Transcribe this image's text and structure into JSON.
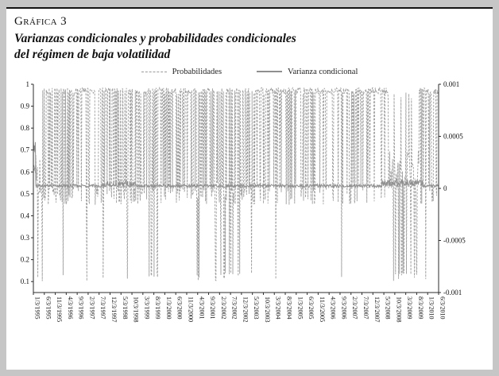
{
  "header": {
    "kicker": "Gráfica 3",
    "title_line1": "Varianzas condicionales y probabilidades condicionales",
    "title_line2": "del régimen de baja volatilidad"
  },
  "chart_data": {
    "type": "line",
    "title": "Varianzas condicionales y probabilidades condicionales del régimen de baja volatilidad",
    "n_points": 820,
    "seed": 42,
    "grid": false,
    "legend_position": "top-center",
    "x_axis": {
      "label_rotation_deg": 90,
      "tick_labels": [
        "1/3/1995",
        "6/3/1995",
        "11/3/1995",
        "4/3/1996",
        "9/3/1996",
        "2/3/1997",
        "7/3/1997",
        "12/3/1997",
        "5/3/1998",
        "10/3/1998",
        "3/3/1999",
        "8/3/1999",
        "1/3/2000",
        "6/3/2000",
        "11/3/2000",
        "4/3/2001",
        "9/3/2001",
        "2/3/2002",
        "7/3/2002",
        "12/3/2002",
        "5/3/2003",
        "10/3/2003",
        "3/3/2004",
        "8/3/2004",
        "1/3/2005",
        "6/3/2005",
        "11/3/2005",
        "4/3/2006",
        "9/3/2006",
        "2/3/2007",
        "7/3/2007",
        "12/3/2007",
        "5/3/2008",
        "10/3/2008",
        "3/3/2009",
        "8/3/2009",
        "1/3/2010",
        "6/3/2010"
      ]
    },
    "left_axis": {
      "tick_labels": [
        "0.1",
        "0.2",
        "0.3",
        "0.4",
        "0.5",
        "0.6",
        "0.7",
        "0.8",
        "0.9",
        "1"
      ],
      "tick_values": [
        0.1,
        0.2,
        0.3,
        0.4,
        0.5,
        0.6,
        0.7,
        0.8,
        0.9,
        1
      ],
      "range": [
        0.05,
        1.0
      ]
    },
    "right_axis": {
      "tick_labels": [
        "0.001",
        "0.0005",
        "0",
        "-0.0005",
        "-0.001"
      ],
      "tick_values": [
        0.001,
        0.0005,
        0,
        -0.0005,
        -0.001
      ],
      "range": [
        -0.001,
        0.001
      ]
    },
    "series": [
      {
        "name": "Probabilidades",
        "axis": "left",
        "style": "dashed",
        "color": "#9b9b9b",
        "description": "Probability of low-volatility regime: mostly near 0.97 with frequent spikes down to ~0.5 and occasional drops to ~0.1; dense low clusters at start of 1995 and during late 2008 - 2009.",
        "pattern_segments": [
          {
            "t0": 0.0,
            "t1": 0.018,
            "base": 0.62,
            "dip": 0.8,
            "dipLow": 0.5,
            "dipHigh": 0.7,
            "deep": 0.1,
            "deepLow": 0.1
          },
          {
            "t0": 0.018,
            "t1": 0.06,
            "base": 0.97,
            "dip": 0.5,
            "dipLow": 0.45,
            "dipHigh": 0.55,
            "deep": 0.05,
            "deepLow": 0.1
          },
          {
            "t0": 0.06,
            "t1": 0.1,
            "base": 0.97,
            "dip": 0.32,
            "dipLow": 0.45,
            "dipHigh": 0.55,
            "deep": 0.08,
            "deepLow": 0.1
          },
          {
            "t0": 0.1,
            "t1": 0.155,
            "base": 0.97,
            "dip": 0.16,
            "dipLow": 0.45,
            "dipHigh": 0.55,
            "deep": 0.02,
            "deepLow": 0.1
          },
          {
            "t0": 0.155,
            "t1": 0.23,
            "base": 0.97,
            "dip": 0.45,
            "dipLow": 0.45,
            "dipHigh": 0.55,
            "deep": 0.04,
            "deepLow": 0.1
          },
          {
            "t0": 0.23,
            "t1": 0.27,
            "base": 0.97,
            "dip": 0.55,
            "dipLow": 0.45,
            "dipHigh": 0.55,
            "deep": 0.08,
            "deepLow": 0.1
          },
          {
            "t0": 0.27,
            "t1": 0.33,
            "base": 0.97,
            "dip": 0.35,
            "dipLow": 0.45,
            "dipHigh": 0.55,
            "deep": 0.1,
            "deepLow": 0.1
          },
          {
            "t0": 0.33,
            "t1": 0.4,
            "base": 0.97,
            "dip": 0.45,
            "dipLow": 0.45,
            "dipHigh": 0.55,
            "deep": 0.03,
            "deepLow": 0.1
          },
          {
            "t0": 0.4,
            "t1": 0.47,
            "base": 0.97,
            "dip": 0.4,
            "dipLow": 0.45,
            "dipHigh": 0.55,
            "deep": 0.05,
            "deepLow": 0.1
          },
          {
            "t0": 0.47,
            "t1": 0.545,
            "base": 0.97,
            "dip": 0.45,
            "dipLow": 0.45,
            "dipHigh": 0.55,
            "deep": 0.08,
            "deepLow": 0.1
          },
          {
            "t0": 0.545,
            "t1": 0.6,
            "base": 0.97,
            "dip": 0.3,
            "dipLow": 0.45,
            "dipHigh": 0.55,
            "deep": 0.06,
            "deepLow": 0.1
          },
          {
            "t0": 0.6,
            "t1": 0.68,
            "base": 0.97,
            "dip": 0.25,
            "dipLow": 0.45,
            "dipHigh": 0.55,
            "deep": 0.03,
            "deepLow": 0.1
          },
          {
            "t0": 0.68,
            "t1": 0.76,
            "base": 0.97,
            "dip": 0.2,
            "dipLow": 0.45,
            "dipHigh": 0.55,
            "deep": 0.02,
            "deepLow": 0.1
          },
          {
            "t0": 0.76,
            "t1": 0.84,
            "base": 0.97,
            "dip": 0.18,
            "dipLow": 0.45,
            "dipHigh": 0.55,
            "deep": 0.02,
            "deepLow": 0.1
          },
          {
            "t0": 0.84,
            "t1": 0.875,
            "base": 0.97,
            "dip": 0.12,
            "dipLow": 0.45,
            "dipHigh": 0.55,
            "deep": 0.01,
            "deepLow": 0.1
          },
          {
            "t0": 0.875,
            "t1": 0.952,
            "base": 0.95,
            "dip": 0.78,
            "dipLow": 0.5,
            "dipHigh": 0.7,
            "deep": 0.12,
            "deepLow": 0.1
          },
          {
            "t0": 0.952,
            "t1": 1.001,
            "base": 0.97,
            "dip": 0.25,
            "dipLow": 0.45,
            "dipHigh": 0.55,
            "deep": 0.03,
            "deepLow": 0.1
          }
        ]
      },
      {
        "name": "Varianza condicional",
        "axis": "right",
        "style": "solid",
        "color": "#8f8f8f",
        "description": "Conditional variance: initial spike near 0.0004 at the start of 1995, then hugs just above 0 for the whole sample with slightly larger wiggles around 1998 and late 2008 - 2009.",
        "pattern_segments": [
          {
            "t0": 0.0,
            "t1": 0.006,
            "base": 0.0003,
            "jitter": 0.00025
          },
          {
            "t0": 0.006,
            "t1": 0.17,
            "base": 2e-05,
            "jitter": 3e-05
          },
          {
            "t0": 0.17,
            "t1": 0.26,
            "base": 3e-05,
            "jitter": 6e-05
          },
          {
            "t0": 0.26,
            "t1": 0.86,
            "base": 2e-05,
            "jitter": 3e-05
          },
          {
            "t0": 0.86,
            "t1": 0.96,
            "base": 4e-05,
            "jitter": 7e-05
          },
          {
            "t0": 0.96,
            "t1": 1.001,
            "base": 2e-05,
            "jitter": 3e-05
          }
        ]
      }
    ]
  }
}
